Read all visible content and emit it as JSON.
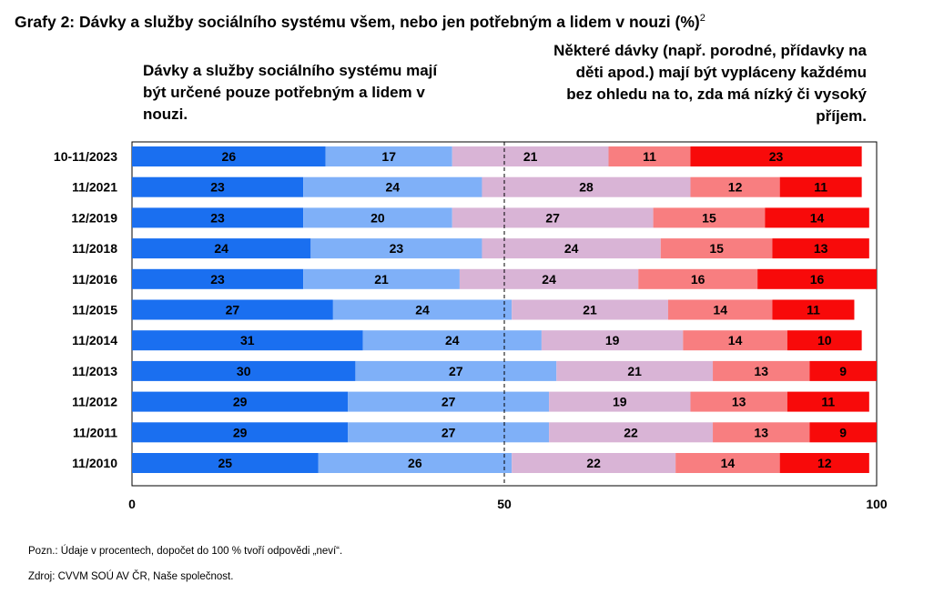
{
  "title": "Grafy 2: Dávky a služby sociálního systému všem, nebo jen potřebným a lidem v nouzi (%)",
  "title_sup": "2",
  "left_note": "Dávky a služby sociálního systému mají být určené pouze potřebným a lidem v nouzi.",
  "right_note": "Některé dávky (např. porodné, přídavky na děti apod.) mají být vypláceny každému bez ohledu na to, zda má nízký či vysoký příjem.",
  "footnote": "Pozn.: Údaje v procentech, dopočet do 100 % tvoří odpovědi „neví“.",
  "source": "Zdroj: CVVM SOÚ AV ČR, Naše společnost.",
  "chart_data": {
    "type": "bar",
    "orientation": "horizontal",
    "stacked": true,
    "categories": [
      "10-11/2023",
      "11/2021",
      "12/2019",
      "11/2018",
      "11/2016",
      "11/2015",
      "11/2014",
      "11/2013",
      "11/2012",
      "11/2011",
      "11/2010"
    ],
    "series": [
      {
        "values": [
          26,
          23,
          23,
          24,
          23,
          27,
          31,
          30,
          29,
          29,
          25
        ],
        "color": "#1a6ff0"
      },
      {
        "values": [
          17,
          24,
          20,
          23,
          21,
          24,
          24,
          27,
          27,
          27,
          26
        ],
        "color": "#7fb0f8"
      },
      {
        "values": [
          21,
          28,
          27,
          24,
          24,
          21,
          19,
          21,
          19,
          22,
          22
        ],
        "color": "#d9b4d6"
      },
      {
        "values": [
          11,
          12,
          15,
          15,
          16,
          14,
          14,
          13,
          13,
          13,
          14
        ],
        "color": "#f87e80"
      },
      {
        "values": [
          23,
          11,
          14,
          13,
          16,
          11,
          10,
          9,
          11,
          9,
          12
        ],
        "color": "#f80a0a"
      }
    ],
    "xlim": [
      0,
      100
    ],
    "xticks": [
      0,
      50,
      100
    ],
    "grid": false,
    "reference_line": 50
  }
}
